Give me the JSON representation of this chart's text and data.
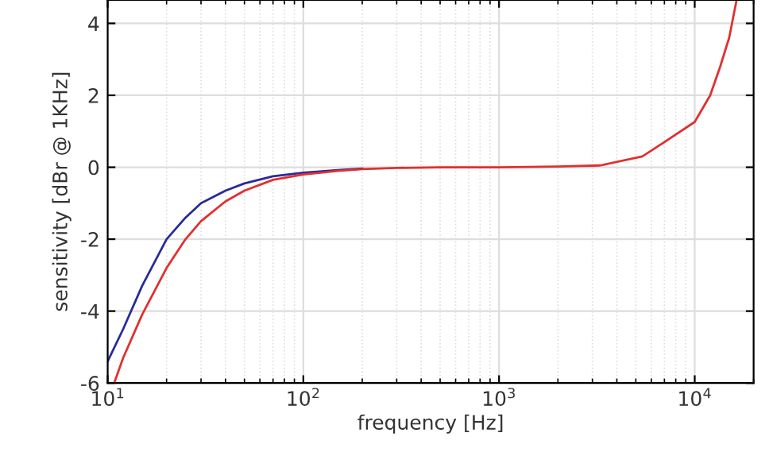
{
  "chart_data": {
    "type": "line",
    "xlabel": "frequency [Hz]",
    "ylabel": "sensitivity [dBr @ 1KHz]",
    "log": "x",
    "grid": true,
    "line_style": "solid",
    "marker": "none",
    "xlim": [
      10,
      20000
    ],
    "ylim": [
      -6,
      4.65
    ],
    "xticks": [
      {
        "value": 10,
        "label": "10$^{1}$"
      },
      {
        "value": 100,
        "label": "10$^{2}$"
      },
      {
        "value": 1000,
        "label": "10$^{3}$"
      },
      {
        "value": 10000,
        "label": "10$^{4}$"
      }
    ],
    "yticks": [
      -6,
      -4,
      -2,
      0,
      2,
      4
    ],
    "series": [
      {
        "color": "#2a2a9a",
        "x": [
          10,
          12,
          15,
          20,
          25,
          30,
          40,
          50,
          70,
          100,
          150,
          200
        ],
        "values": [
          -5.4,
          -4.5,
          -3.3,
          -2.0,
          -1.4,
          -1.0,
          -0.65,
          -0.45,
          -0.25,
          -0.15,
          -0.08,
          -0.04
        ]
      },
      {
        "color": "#e0302f",
        "x": [
          10.8,
          12,
          15,
          20,
          25,
          30,
          40,
          50,
          70,
          100,
          150,
          200,
          300,
          500,
          1000,
          2000,
          3300,
          5400,
          7000,
          10000,
          12000,
          13500,
          15000,
          16300
        ],
        "values": [
          -6,
          -5.3,
          -4.1,
          -2.8,
          -2.0,
          -1.5,
          -0.95,
          -0.65,
          -0.35,
          -0.2,
          -0.1,
          -0.05,
          -0.02,
          0,
          0,
          0.02,
          0.05,
          0.3,
          0.7,
          1.26,
          2.0,
          2.8,
          3.6,
          4.6
        ]
      }
    ]
  }
}
